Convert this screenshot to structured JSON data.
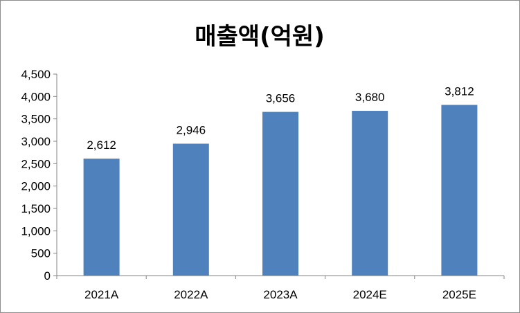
{
  "chart_data": {
    "type": "bar",
    "title": "매출액(억원)",
    "categories": [
      "2021A",
      "2022A",
      "2023A",
      "2024E",
      "2025E"
    ],
    "values": [
      2612,
      2946,
      3656,
      3680,
      3812
    ],
    "value_labels": [
      "2,612",
      "2,946",
      "3,656",
      "3,680",
      "3,812"
    ],
    "ylim": [
      0,
      4500
    ],
    "yticks": [
      0,
      500,
      1000,
      1500,
      2000,
      2500,
      3000,
      3500,
      4000,
      4500
    ],
    "ytick_labels": [
      "0",
      "500",
      "1,000",
      "1,500",
      "2,000",
      "2,500",
      "3,000",
      "3,500",
      "4,000",
      "4,500"
    ],
    "xlabel": "",
    "ylabel": "",
    "grid": false,
    "legend": "none",
    "bar_color": "#4f81bd"
  }
}
